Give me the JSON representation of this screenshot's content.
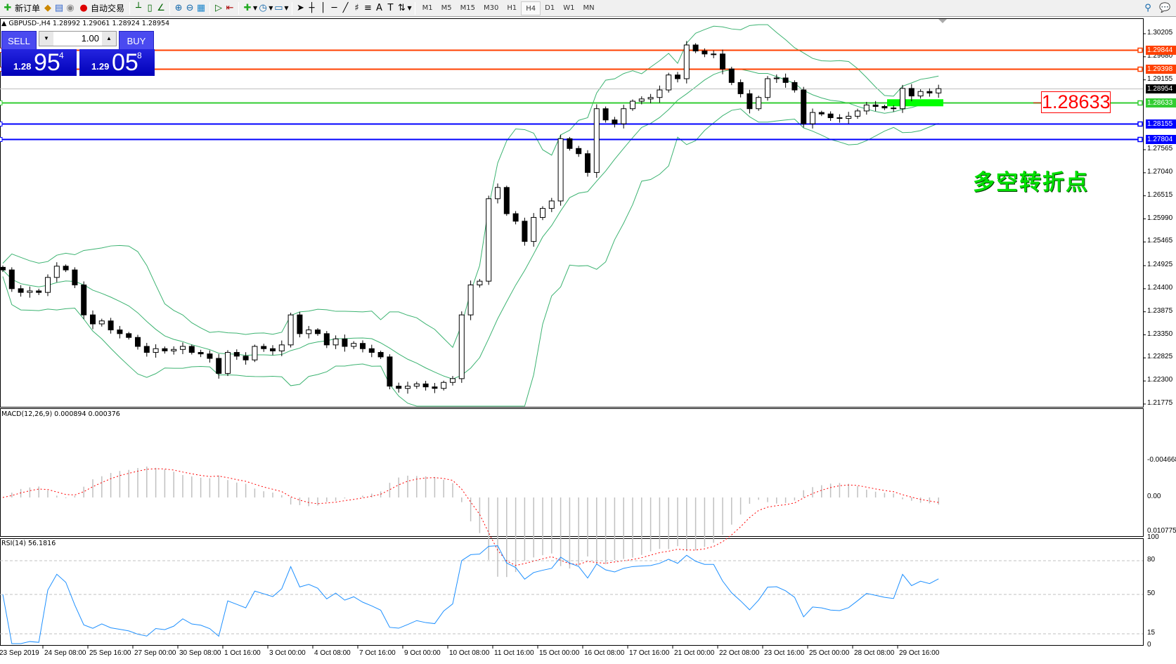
{
  "toolbar": {
    "new_order": "新订单",
    "auto_trading": "自动交易",
    "icons": [
      "new-order-icon",
      "navigator-icon",
      "terminal-icon",
      "signals-icon",
      "auto-trading-icon",
      "bar-chart-icon",
      "candlestick-icon",
      "line-chart-icon",
      "zoom-in-icon",
      "zoom-out-icon",
      "tile-windows-icon",
      "autoscroll-icon",
      "chart-shift-icon",
      "indicators-icon",
      "periods-icon",
      "templates-icon",
      "cursor-icon",
      "crosshair-icon",
      "vertical-line-icon",
      "horizontal-line-icon",
      "trendline-icon",
      "fibo-expansion-icon",
      "fibo-retracement-icon",
      "text-icon",
      "text-label-icon",
      "arrows-icon",
      "search-icon",
      "chat-icon"
    ],
    "timeframes": [
      "M1",
      "M5",
      "M15",
      "M30",
      "H1",
      "H4",
      "D1",
      "W1",
      "MN"
    ],
    "active_timeframe": "H4"
  },
  "chart_header": "GBPUSD-,H4  1.28992 1.29061 1.28924 1.28954",
  "one_click": {
    "sell_label": "SELL",
    "buy_label": "BUY",
    "lot": "1.00",
    "sell_price": {
      "prefix": "1.28",
      "big": "95",
      "sup": "4"
    },
    "buy_price": {
      "prefix": "1.29",
      "big": "05",
      "sup": "8"
    }
  },
  "annotation_text": "多空转折点",
  "price_box": "1.28633",
  "chart_data": {
    "type": "candlestick",
    "symbol": "GBPUSD-",
    "timeframe": "H4",
    "ylim": [
      1.21775,
      1.30205
    ],
    "price_ticks": [
      "1.30205",
      "1.29680",
      "1.29155",
      "1.27565",
      "1.27040",
      "1.26515",
      "1.25990",
      "1.25465",
      "1.24925",
      "1.24400",
      "1.23875",
      "1.23350",
      "1.22825",
      "1.22300",
      "1.21775"
    ],
    "time_labels": [
      "23 Sep 2019",
      "24 Sep 08:00",
      "25 Sep 16:00",
      "27 Sep 00:00",
      "30 Sep 08:00",
      "1 Oct 16:00",
      "3 Oct 00:00",
      "4 Oct 08:00",
      "7 Oct 16:00",
      "9 Oct 00:00",
      "10 Oct 08:00",
      "11 Oct 16:00",
      "15 Oct 00:00",
      "16 Oct 08:00",
      "17 Oct 16:00",
      "21 Oct 00:00",
      "22 Oct 08:00",
      "23 Oct 16:00",
      "25 Oct 00:00",
      "28 Oct 08:00",
      "29 Oct 16:00"
    ],
    "closes": [
      1.24828,
      1.24401,
      1.24316,
      1.2435,
      1.24316,
      1.24657,
      1.24913,
      1.24828,
      1.24486,
      1.23804,
      1.23599,
      1.23667,
      1.23462,
      1.23377,
      1.23291,
      1.23087,
      1.2295,
      1.23035,
      1.22984,
      1.23018,
      1.23087,
      1.2295,
      1.22916,
      1.22814,
      1.22472,
      1.2295,
      1.22865,
      1.22779,
      1.23087,
      1.23035,
      1.22984,
      1.23121,
      1.23804,
      1.23377,
      1.23462,
      1.23377,
      1.23121,
      1.23257,
      1.23087,
      1.23155,
      1.23035,
      1.2295,
      1.22848,
      1.22182,
      1.22131,
      1.22182,
      1.22233,
      1.22165,
      1.22131,
      1.22267,
      1.22353,
      1.23804,
      1.24486,
      1.24572,
      1.26449,
      1.26705,
      1.26108,
      1.25937,
      1.25476,
      1.26023,
      1.26228,
      1.26398,
      1.27815,
      1.27593,
      1.27474,
      1.27047,
      1.28498,
      1.28242,
      1.28156,
      1.28498,
      1.28669,
      1.2872,
      1.28754,
      1.28925,
      1.29266,
      1.29181,
      1.29949,
      1.29812,
      1.29744,
      1.29744,
      1.29403,
      1.29095,
      1.28839,
      1.28498,
      1.28754,
      1.29181,
      1.29198,
      1.29095,
      1.28925,
      1.28156,
      1.28412,
      1.28378,
      1.28293,
      1.28276,
      1.28327,
      1.28447,
      1.28583,
      1.28549,
      1.28515,
      1.28498,
      1.28959,
      1.28788,
      1.2889,
      1.28856,
      1.28954
    ],
    "horizontal_lines": [
      {
        "price": "1.29844",
        "color": "#ff4000"
      },
      {
        "price": "1.29398",
        "color": "#ff4000"
      },
      {
        "price": "1.28954",
        "color": "#c0c0c0",
        "label_color": "#000000"
      },
      {
        "price": "1.28633",
        "color": "#32cd32"
      },
      {
        "price": "1.28155",
        "color": "#0000ff"
      },
      {
        "price": "1.27804",
        "color": "#0000ff"
      }
    ],
    "band_color": "#3cb371",
    "macd": {
      "label": "MACD(12,26,9) 0.000894 0.000376",
      "ticks": [
        "0.010775",
        "0.00",
        "-0.004668"
      ],
      "ylim": [
        -0.004668,
        0.010775
      ],
      "histogram_color": "#c0c0c0",
      "signal_color": "#ff0000"
    },
    "rsi": {
      "label": "RSI(14) 56.1816",
      "ticks": [
        "100",
        "80",
        "50",
        "15",
        "0"
      ],
      "levels": [
        80,
        50,
        15
      ],
      "color": "#1e90ff"
    }
  }
}
